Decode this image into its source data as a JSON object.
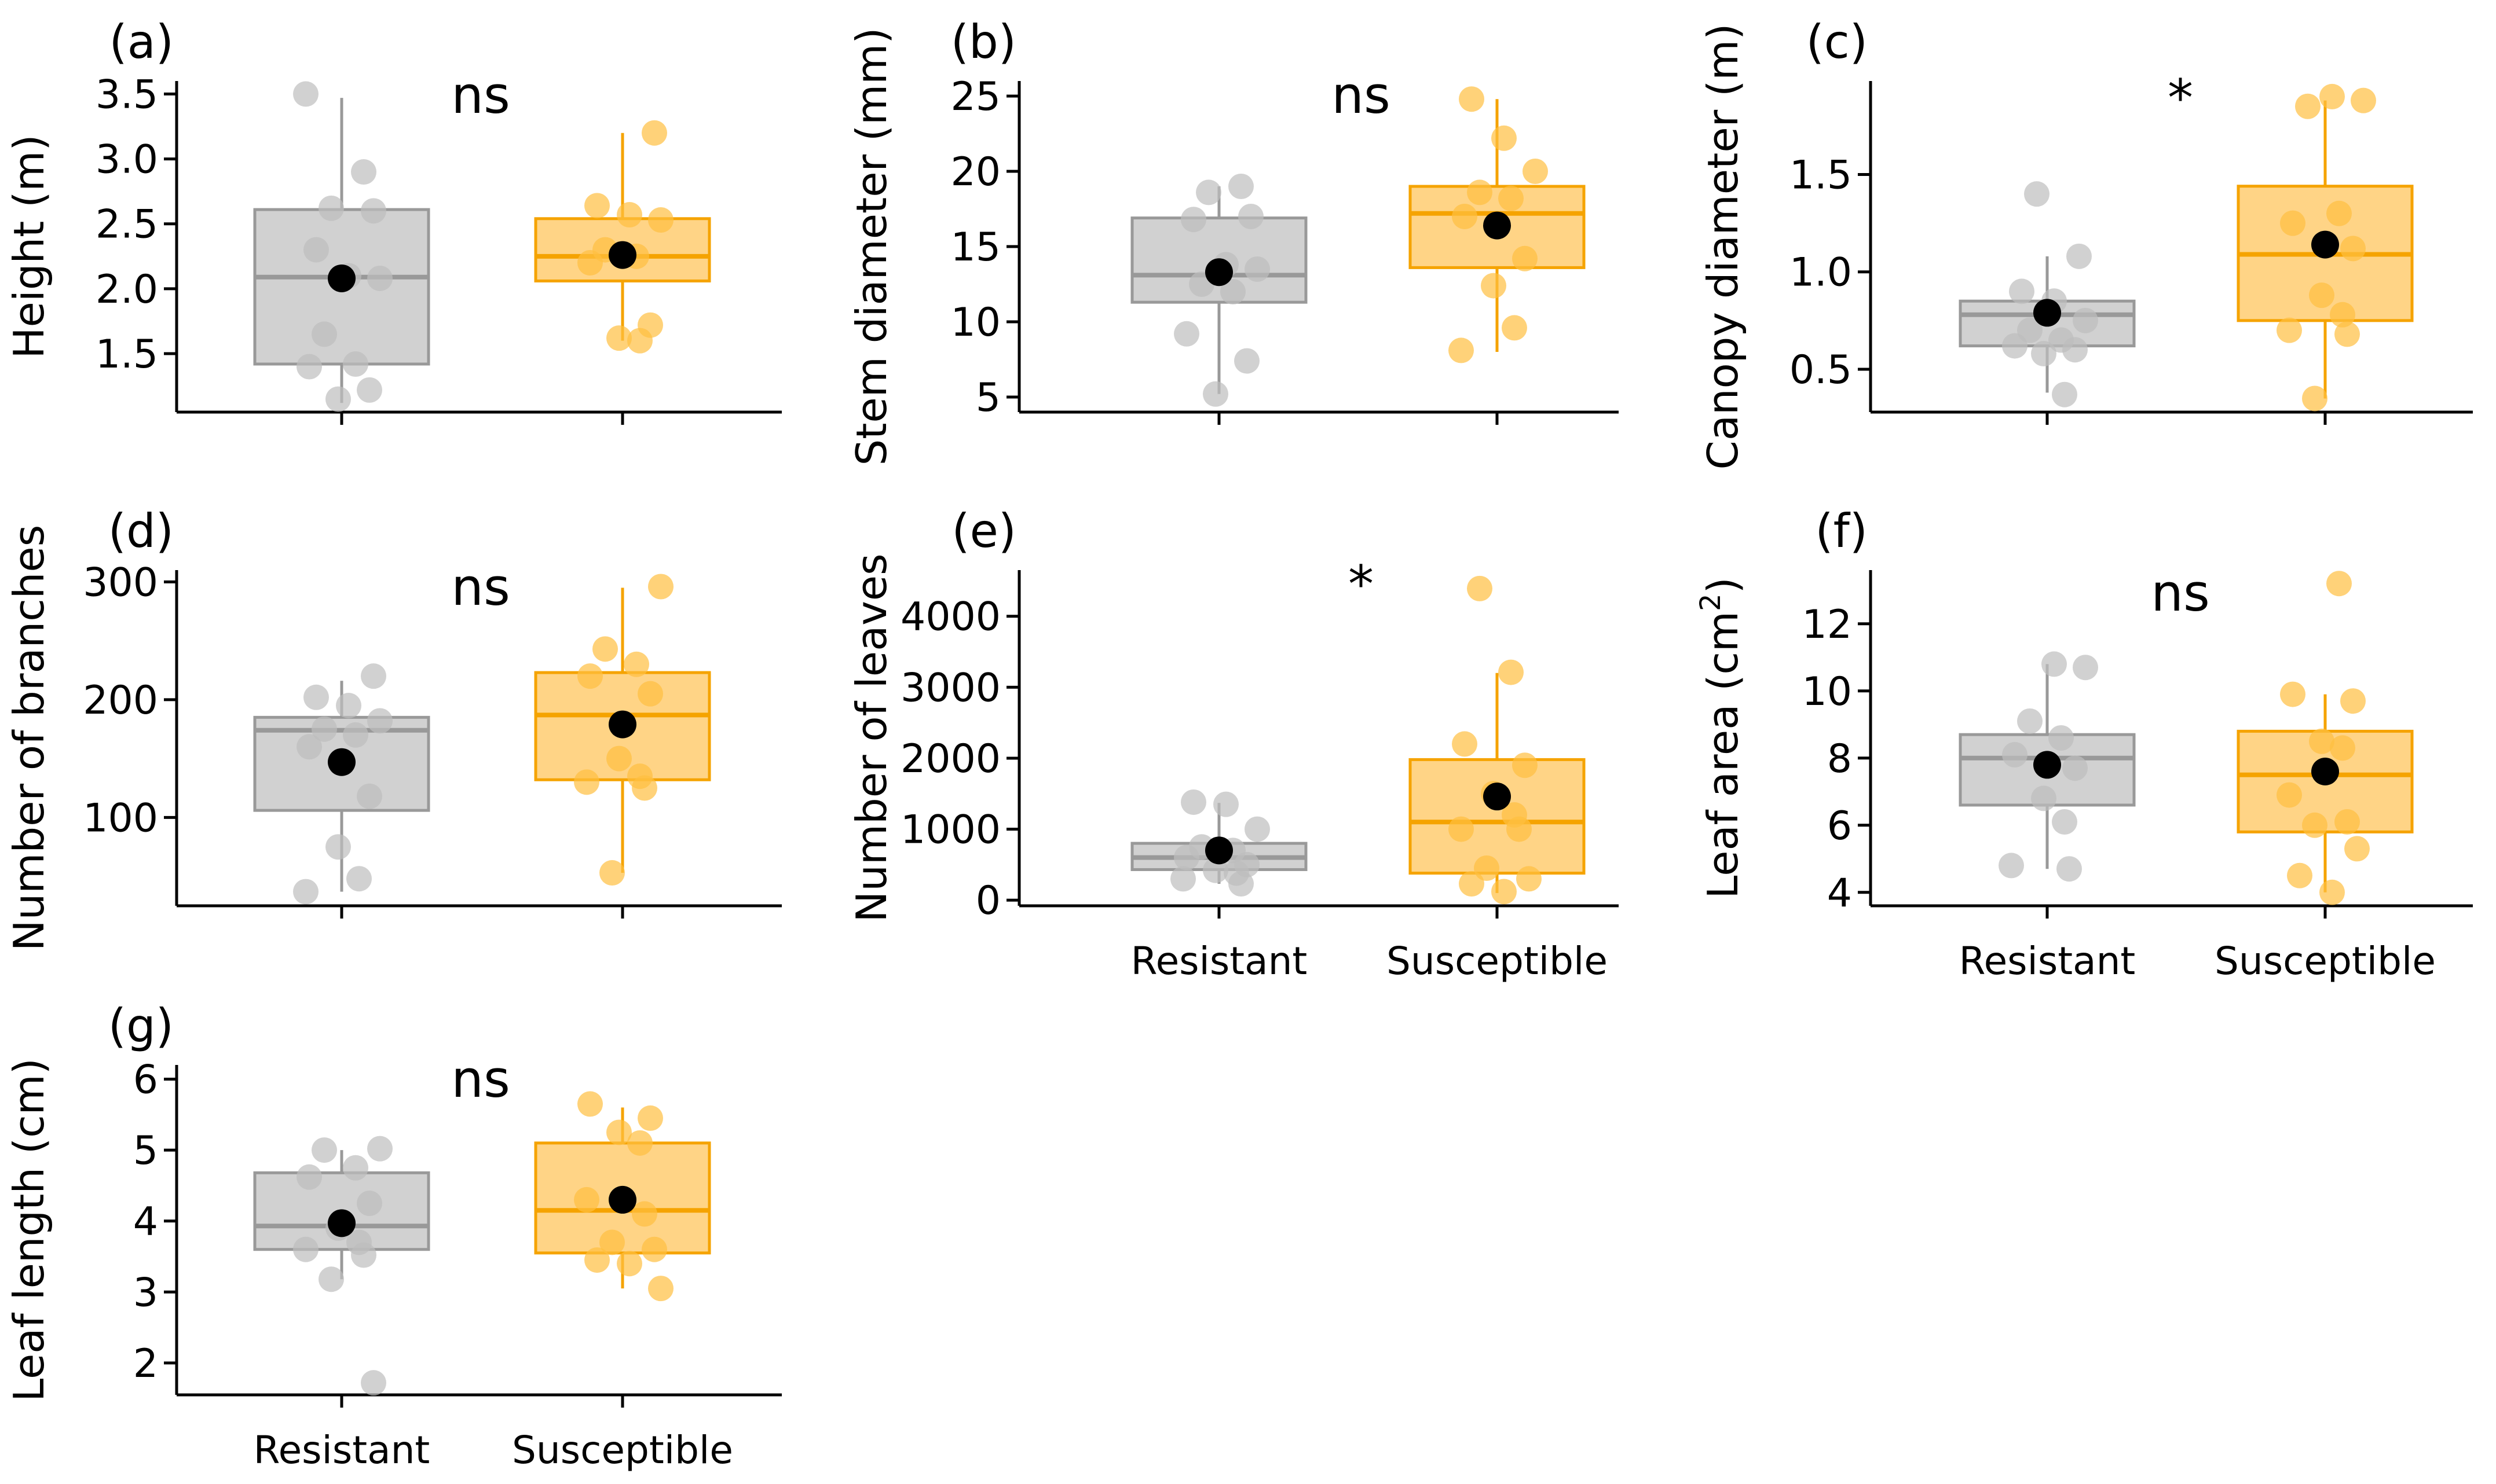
{
  "groups": [
    "Resistant",
    "Susceptible"
  ],
  "colors": {
    "resistant_fill": "#cfcfcf",
    "resistant_line": "#999999",
    "resistant_point": "#bdbdbd",
    "susceptible_fill": "#ffd27f",
    "susceptible_line": "#f5a300",
    "susceptible_point": "#ffbf40",
    "mean_point": "#000000"
  },
  "chart_data": [
    {
      "id": "a",
      "type": "box",
      "panel_label": "(a)",
      "ylabel": "Height (m)",
      "ylim": [
        1.05,
        3.6
      ],
      "yticks": [
        1.5,
        2.0,
        2.5,
        3.0,
        3.5
      ],
      "tick_labels": [
        "1.5",
        "2.0",
        "2.5",
        "3.0",
        "3.5"
      ],
      "significance": "ns",
      "show_xlabels": false,
      "series": [
        {
          "name": "Resistant",
          "q1": 1.42,
          "median": 2.09,
          "q3": 2.61,
          "whisker_low": 1.12,
          "whisker_high": 3.47,
          "mean": 2.08,
          "points": [
            3.5,
            2.9,
            2.62,
            2.6,
            2.3,
            2.1,
            2.08,
            1.65,
            1.42,
            1.4,
            1.22,
            1.15
          ]
        },
        {
          "name": "Susceptible",
          "q1": 2.06,
          "median": 2.25,
          "q3": 2.54,
          "whisker_low": 1.6,
          "whisker_high": 3.2,
          "mean": 2.26,
          "points": [
            3.2,
            2.64,
            2.57,
            2.53,
            2.3,
            2.25,
            2.2,
            1.72,
            1.62,
            1.6
          ]
        }
      ]
    },
    {
      "id": "b",
      "type": "box",
      "panel_label": "(b)",
      "ylabel": "Stem diameter (mm)",
      "ylim": [
        4.0,
        26.0
      ],
      "yticks": [
        5,
        10,
        15,
        20,
        25
      ],
      "tick_labels": [
        "5",
        "10",
        "15",
        "20",
        "25"
      ],
      "significance": "ns",
      "show_xlabels": false,
      "series": [
        {
          "name": "Resistant",
          "q1": 11.3,
          "median": 13.1,
          "q3": 16.9,
          "whisker_low": 5.2,
          "whisker_high": 19.0,
          "mean": 13.3,
          "points": [
            19.0,
            18.6,
            17.0,
            16.8,
            13.8,
            13.5,
            12.5,
            12.0,
            9.2,
            7.4,
            5.2
          ]
        },
        {
          "name": "Susceptible",
          "q1": 13.6,
          "median": 17.2,
          "q3": 19.0,
          "whisker_low": 8.0,
          "whisker_high": 24.8,
          "mean": 16.4,
          "points": [
            24.8,
            22.2,
            20.0,
            18.6,
            18.2,
            17.0,
            14.2,
            12.4,
            9.6,
            8.1
          ]
        }
      ]
    },
    {
      "id": "c",
      "type": "box",
      "panel_label": "(c)",
      "ylabel": "Canopy diameter (m)",
      "ylim": [
        0.28,
        1.98
      ],
      "yticks": [
        0.5,
        1.0,
        1.5
      ],
      "tick_labels": [
        "0.5",
        "1.0",
        "1.5"
      ],
      "significance": "*",
      "show_xlabels": false,
      "series": [
        {
          "name": "Resistant",
          "q1": 0.62,
          "median": 0.78,
          "q3": 0.85,
          "whisker_low": 0.38,
          "whisker_high": 1.08,
          "mean": 0.79,
          "points": [
            1.4,
            1.08,
            0.9,
            0.85,
            0.75,
            0.7,
            0.65,
            0.62,
            0.6,
            0.58,
            0.37
          ]
        },
        {
          "name": "Susceptible",
          "q1": 0.75,
          "median": 1.09,
          "q3": 1.44,
          "whisker_low": 0.35,
          "whisker_high": 1.88,
          "mean": 1.14,
          "points": [
            1.9,
            1.88,
            1.85,
            1.3,
            1.25,
            1.12,
            0.88,
            0.78,
            0.7,
            0.68,
            0.35
          ]
        }
      ]
    },
    {
      "id": "d",
      "type": "box",
      "panel_label": "(d)",
      "ylabel": "Number of branches",
      "ylim": [
        25,
        310
      ],
      "yticks": [
        100,
        200,
        300
      ],
      "tick_labels": [
        "100",
        "200",
        "300"
      ],
      "significance": "ns",
      "show_xlabels": false,
      "series": [
        {
          "name": "Resistant",
          "q1": 106,
          "median": 174,
          "q3": 185,
          "whisker_low": 37,
          "whisker_high": 216,
          "mean": 147,
          "points": [
            220,
            202,
            195,
            182,
            175,
            170,
            160,
            118,
            75,
            48,
            37
          ]
        },
        {
          "name": "Susceptible",
          "q1": 132,
          "median": 187,
          "q3": 223,
          "whisker_low": 53,
          "whisker_high": 295,
          "mean": 179,
          "points": [
            296,
            243,
            230,
            220,
            205,
            150,
            135,
            130,
            125,
            53
          ]
        }
      ]
    },
    {
      "id": "e",
      "type": "box",
      "panel_label": "(e)",
      "ylabel": "Number of leaves",
      "ylim": [
        -80,
        4650
      ],
      "yticks": [
        0,
        1000,
        2000,
        3000,
        4000
      ],
      "tick_labels": [
        "0",
        "1000",
        "2000",
        "3000",
        "4000"
      ],
      "significance": "*",
      "show_xlabels": true,
      "series": [
        {
          "name": "Resistant",
          "q1": 430,
          "median": 600,
          "q3": 800,
          "whisker_low": 230,
          "whisker_high": 1370,
          "mean": 700,
          "points": [
            1380,
            1350,
            1000,
            750,
            700,
            600,
            500,
            420,
            380,
            300,
            230
          ]
        },
        {
          "name": "Susceptible",
          "q1": 380,
          "median": 1100,
          "q3": 1980,
          "whisker_low": 100,
          "whisker_high": 3200,
          "mean": 1460,
          "points": [
            4390,
            3210,
            2200,
            1900,
            1500,
            1200,
            1000,
            1000,
            450,
            300,
            230,
            120
          ]
        }
      ]
    },
    {
      "id": "f",
      "type": "box",
      "panel_label": "(f)",
      "ylabel": "Leaf area (cm²)",
      "ylim": [
        3.6,
        13.6
      ],
      "yticks": [
        4,
        6,
        8,
        10,
        12
      ],
      "tick_labels": [
        "4",
        "6",
        "8",
        "10",
        "12"
      ],
      "significance": "ns",
      "show_xlabels": true,
      "series": [
        {
          "name": "Resistant",
          "q1": 6.6,
          "median": 8.0,
          "q3": 8.7,
          "whisker_low": 4.7,
          "whisker_high": 10.8,
          "mean": 7.8,
          "points": [
            10.8,
            10.7,
            9.1,
            8.6,
            8.1,
            7.7,
            6.8,
            6.1,
            4.8,
            4.7
          ]
        },
        {
          "name": "Susceptible",
          "q1": 5.8,
          "median": 7.5,
          "q3": 8.8,
          "whisker_low": 4.0,
          "whisker_high": 9.9,
          "mean": 7.6,
          "points": [
            13.2,
            9.9,
            9.7,
            8.5,
            8.3,
            6.9,
            6.1,
            6.0,
            5.3,
            4.5,
            4.0
          ]
        }
      ]
    },
    {
      "id": "g",
      "type": "box",
      "panel_label": "(g)",
      "ylabel": "Leaf length (cm)",
      "ylim": [
        1.55,
        6.2
      ],
      "yticks": [
        2,
        3,
        4,
        5,
        6
      ],
      "tick_labels": [
        "2",
        "3",
        "4",
        "5",
        "6"
      ],
      "significance": "ns",
      "show_xlabels": true,
      "series": [
        {
          "name": "Resistant",
          "q1": 3.6,
          "median": 3.93,
          "q3": 4.68,
          "whisker_low": 3.18,
          "whisker_high": 5.0,
          "mean": 3.97,
          "points": [
            5.02,
            5.0,
            4.75,
            4.62,
            4.25,
            3.9,
            3.7,
            3.6,
            3.52,
            3.18,
            1.72
          ]
        },
        {
          "name": "Susceptible",
          "q1": 3.55,
          "median": 4.15,
          "q3": 5.1,
          "whisker_low": 3.05,
          "whisker_high": 5.6,
          "mean": 4.3,
          "points": [
            5.65,
            5.45,
            5.25,
            5.1,
            4.3,
            4.1,
            3.7,
            3.6,
            3.45,
            3.4,
            3.05
          ]
        }
      ]
    }
  ]
}
